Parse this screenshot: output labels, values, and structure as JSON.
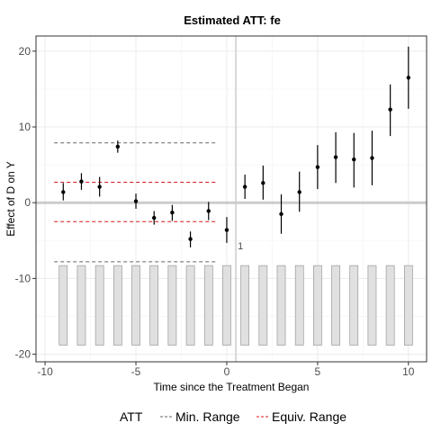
{
  "chart_data": {
    "type": "scatter",
    "title": "Estimated ATT: fe",
    "xlabel": "Time since the Treatment Began",
    "ylabel": "Effect of D on Y",
    "xlim": [
      -10.5,
      11
    ],
    "ylim": [
      -21,
      22
    ],
    "xticks": [
      -10,
      -5,
      0,
      5,
      10
    ],
    "yticks": [
      -20,
      -10,
      0,
      10,
      20
    ],
    "x_tick_labels": [
      "-10",
      "-5",
      "0",
      "5",
      "10"
    ],
    "y_tick_labels": [
      "-20",
      "-10",
      "0",
      "10",
      "20"
    ],
    "grid": true,
    "reference_lines": {
      "horizontal": 0,
      "vertical": 0.5
    },
    "series": [
      {
        "name": "ATT",
        "x": [
          -9,
          -8,
          -7,
          -6,
          -5,
          -4,
          -3,
          -2,
          -1,
          0,
          1,
          2,
          3,
          4,
          5,
          6,
          7,
          8,
          9,
          10
        ],
        "y": [
          1.4,
          2.8,
          2.1,
          7.4,
          0.2,
          -2.0,
          -1.3,
          -4.8,
          -1.1,
          -3.6,
          2.1,
          2.6,
          -1.5,
          1.4,
          4.7,
          6.0,
          5.7,
          5.9,
          12.3,
          16.5
        ],
        "ci_lower": [
          0.3,
          1.7,
          0.8,
          6.6,
          -0.8,
          -2.9,
          -2.4,
          -5.9,
          -2.3,
          -5.3,
          0.5,
          0.4,
          -4.1,
          -1.2,
          1.8,
          2.6,
          2.0,
          2.3,
          8.8,
          12.4
        ],
        "ci_upper": [
          2.6,
          3.9,
          3.4,
          8.2,
          1.2,
          -1.1,
          -0.3,
          -3.8,
          0.1,
          -1.9,
          3.7,
          4.9,
          1.1,
          4.1,
          7.6,
          9.3,
          9.2,
          9.5,
          15.6,
          20.6
        ]
      }
    ],
    "min_range": {
      "name": "Min. Range",
      "x_from": -9.5,
      "x_to": -0.5,
      "upper": 7.9,
      "lower": -7.8,
      "color": "#666666"
    },
    "equiv_range": {
      "name": "Equiv. Range",
      "x_from": -9.5,
      "x_to": -0.5,
      "upper": 2.7,
      "lower": -2.5,
      "color": "#d7191c"
    },
    "count_bars": {
      "x": [
        -9,
        -8,
        -7,
        -6,
        -5,
        -4,
        -3,
        -2,
        -1,
        0,
        1,
        2,
        3,
        4,
        5,
        6,
        7,
        8,
        9,
        10
      ],
      "top": -8.3,
      "bottom": -18.8,
      "color": "#e0e0e0",
      "stroke": "#8c8c8c"
    },
    "annotations": [
      {
        "text": "1",
        "x": 0.6,
        "y": -5.7,
        "color": "#8b1a1a"
      }
    ],
    "legend": {
      "position": "bottom",
      "title": "ATT",
      "entries": [
        {
          "label": "Min. Range",
          "color": "#666666",
          "style": "dashed"
        },
        {
          "label": "Equiv. Range",
          "color": "#d7191c",
          "style": "dashed"
        }
      ]
    }
  }
}
